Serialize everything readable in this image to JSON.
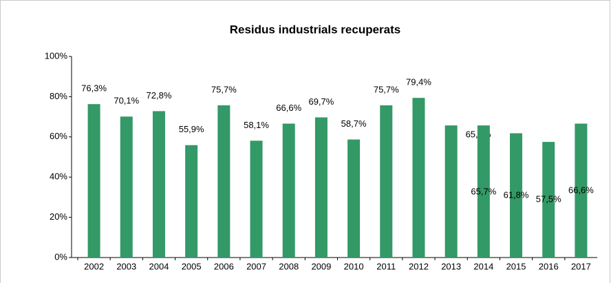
{
  "chart_data": {
    "type": "bar",
    "title": "Residus industrials recuperats",
    "categories": [
      "2002",
      "2003",
      "2004",
      "2005",
      "2006",
      "2007",
      "2008",
      "2009",
      "2010",
      "2011",
      "2012",
      "2013",
      "2014",
      "2015",
      "2016",
      "2017"
    ],
    "values": [
      76.3,
      70.1,
      72.8,
      55.9,
      75.7,
      58.1,
      66.6,
      69.7,
      58.7,
      75.7,
      79.4,
      65.7,
      65.7,
      61.8,
      57.5,
      66.6
    ],
    "value_labels": [
      "76,3%",
      "70,1%",
      "72,8%",
      "55,9%",
      "75,7%",
      "58,1%",
      "66,6%",
      "69,7%",
      "58,7%",
      "75,7%",
      "79,4%",
      "65,7%",
      "65,7%",
      "61,8%",
      "57,5%",
      "66,6%"
    ],
    "color": "#339966",
    "ylim": [
      0,
      100
    ],
    "yticks": [
      {
        "value": 0,
        "label": "0%"
      },
      {
        "value": 20,
        "label": "20%"
      },
      {
        "value": 40,
        "label": "40%"
      },
      {
        "value": 60,
        "label": "60%"
      },
      {
        "value": 80,
        "label": "80%"
      },
      {
        "value": 100,
        "label": "100%"
      }
    ]
  }
}
